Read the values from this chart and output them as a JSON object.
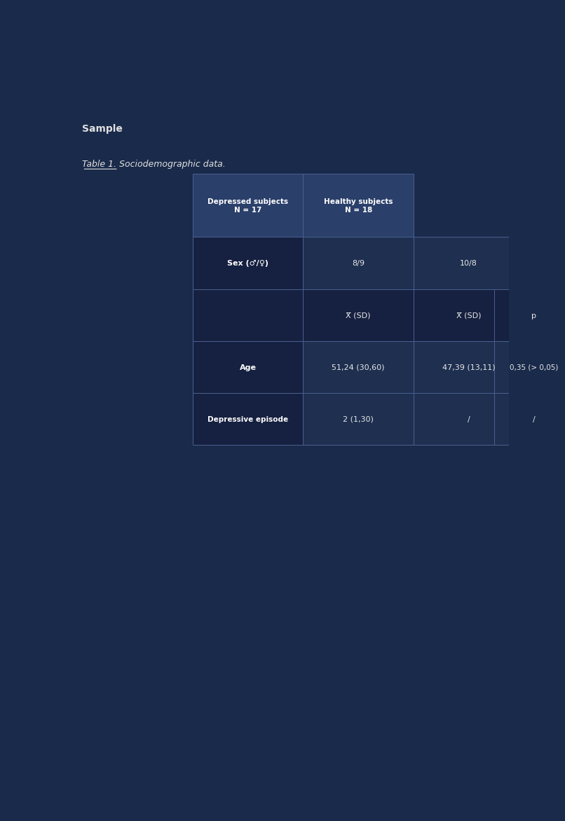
{
  "title": "Table 1. Sociodemographic data.",
  "label_sample": "Sample",
  "col_headers": [
    "Depressed subjects\nN = 17",
    "Healthy subjects\nN = 18"
  ],
  "row1_label": "Sex (♂/♀)",
  "row1_vals": [
    "8/9",
    "10/8",
    ""
  ],
  "subheader": [
    "X̅ (SD)",
    "X̅ (SD)",
    "p"
  ],
  "row2_label": "Age",
  "row2_vals": [
    "51,24 (30,60)",
    "47,39 (13,11)",
    "0,35 (> 0,05)"
  ],
  "row3_label": "Depressive episode",
  "row3_vals": [
    "2 (1,30)",
    "/",
    "/"
  ],
  "bg_color": "#1a2a4a",
  "header_bg": "#2a3f6a",
  "cell_bg": "#162040",
  "cell_bg_alt": "#1e2f50",
  "table_text_color": "#e8e8e8",
  "label_color": "#ffffff",
  "header_color": "#ffffff",
  "sample_label_color": "#e0e0e0",
  "table_title_color": "#e0e0e0",
  "border_color": "#4a6090"
}
